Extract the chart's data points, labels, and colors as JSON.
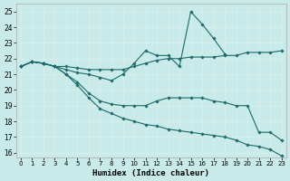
{
  "xlabel": "Humidex (Indice chaleur)",
  "bg_color": "#c8eae8",
  "grid_color": "#d8eeec",
  "line_color": "#1a6b6b",
  "xlim_min": -0.4,
  "xlim_max": 23.4,
  "ylim_min": 15.7,
  "ylim_max": 25.5,
  "yticks": [
    16,
    17,
    18,
    19,
    20,
    21,
    22,
    23,
    24,
    25
  ],
  "xticks": [
    0,
    1,
    2,
    3,
    4,
    5,
    6,
    7,
    8,
    9,
    10,
    11,
    12,
    13,
    14,
    15,
    16,
    17,
    18,
    19,
    20,
    21,
    22,
    23
  ],
  "line1_x": [
    0,
    1,
    2,
    3,
    4,
    5,
    6,
    7,
    8,
    9,
    10,
    11,
    12,
    13,
    14,
    15,
    16,
    17,
    18,
    19,
    20,
    21,
    22,
    23
  ],
  "line1_y": [
    21.5,
    21.8,
    21.7,
    21.5,
    21.5,
    21.4,
    21.3,
    21.3,
    21.3,
    21.3,
    21.5,
    21.7,
    21.9,
    22.0,
    22.0,
    22.1,
    22.1,
    22.1,
    22.2,
    22.2,
    22.4,
    22.4,
    22.4,
    22.5
  ],
  "line2_x": [
    0,
    1,
    2,
    3,
    4,
    5,
    6,
    7,
    8,
    9,
    10,
    11,
    12,
    13,
    14,
    15,
    16,
    17,
    18
  ],
  "line2_y": [
    21.5,
    21.8,
    21.7,
    21.5,
    21.3,
    21.1,
    21.0,
    20.8,
    20.6,
    21.0,
    21.7,
    22.5,
    22.2,
    22.2,
    21.5,
    25.0,
    24.2,
    23.3,
    22.3
  ],
  "line3_x": [
    0,
    1,
    2,
    3,
    4,
    5,
    6,
    7,
    8,
    9,
    10,
    11,
    12,
    13,
    14,
    15,
    16,
    17,
    18,
    19,
    20,
    21,
    22,
    23
  ],
  "line3_y": [
    21.5,
    21.8,
    21.7,
    21.5,
    21.0,
    20.5,
    19.8,
    19.3,
    19.1,
    19.0,
    19.0,
    19.0,
    19.3,
    19.5,
    19.5,
    19.5,
    19.5,
    19.3,
    19.2,
    19.0,
    19.0,
    17.3,
    17.3,
    16.8
  ],
  "line4_x": [
    0,
    1,
    2,
    3,
    4,
    5,
    6,
    7,
    8,
    9,
    10,
    11,
    12,
    13,
    14,
    15,
    16,
    17,
    18,
    19,
    20,
    21,
    22,
    23
  ],
  "line4_y": [
    21.5,
    21.8,
    21.7,
    21.5,
    21.0,
    20.3,
    19.5,
    18.8,
    18.5,
    18.2,
    18.0,
    17.8,
    17.7,
    17.5,
    17.4,
    17.3,
    17.2,
    17.1,
    17.0,
    16.8,
    16.5,
    16.4,
    16.2,
    15.8
  ]
}
